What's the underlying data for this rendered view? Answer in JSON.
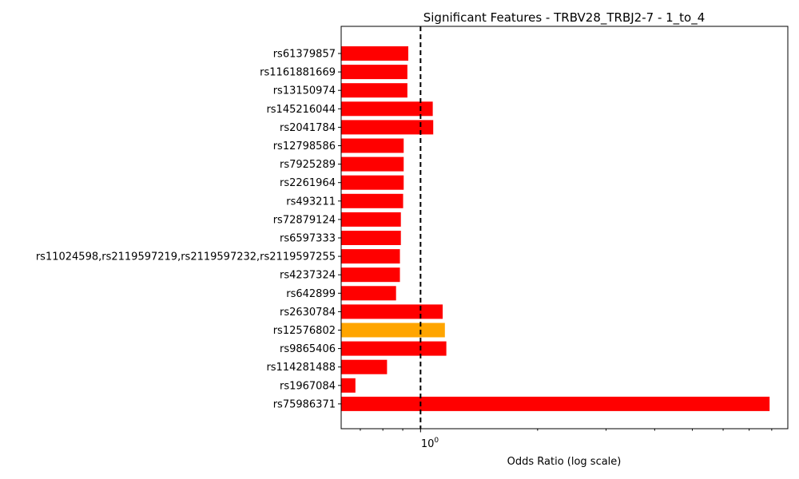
{
  "chart_data": {
    "type": "bar",
    "orientation": "horizontal",
    "title": "Significant Features - TRBV28_TRBJ2-7 - 1_to_4",
    "xlabel": "Odds Ratio (log scale)",
    "ylabel": "",
    "xscale": "log",
    "xlim": [
      0.625,
      8.8
    ],
    "reference_line": {
      "x": 1,
      "style": "dashed",
      "color": "#000000"
    },
    "x_tick_label": {
      "base": "10",
      "exponent": "0"
    },
    "grid": false,
    "colors": {
      "default": "#ff0000",
      "highlight": "#ffa500"
    },
    "categories": [
      "rs61379857",
      "rs1161881669",
      "rs13150974",
      "rs145216044",
      "rs2041784",
      "rs12798586",
      "rs7925289",
      "rs2261964",
      "rs493211",
      "rs72879124",
      "rs6597333",
      "rs11024598,rs2119597219,rs2119597232,rs2119597255",
      "rs4237324",
      "rs642899",
      "rs2630784",
      "rs12576802",
      "rs9865406",
      "rs114281488",
      "rs1967084",
      "rs75986371"
    ],
    "values": [
      0.93,
      0.925,
      0.925,
      1.075,
      1.078,
      0.905,
      0.905,
      0.905,
      0.902,
      0.89,
      0.89,
      0.885,
      0.885,
      0.865,
      1.14,
      1.155,
      1.165,
      0.82,
      0.68,
      7.9
    ],
    "bar_colors": [
      "#ff0000",
      "#ff0000",
      "#ff0000",
      "#ff0000",
      "#ff0000",
      "#ff0000",
      "#ff0000",
      "#ff0000",
      "#ff0000",
      "#ff0000",
      "#ff0000",
      "#ff0000",
      "#ff0000",
      "#ff0000",
      "#ff0000",
      "#ffa500",
      "#ff0000",
      "#ff0000",
      "#ff0000",
      "#ff0000"
    ]
  }
}
